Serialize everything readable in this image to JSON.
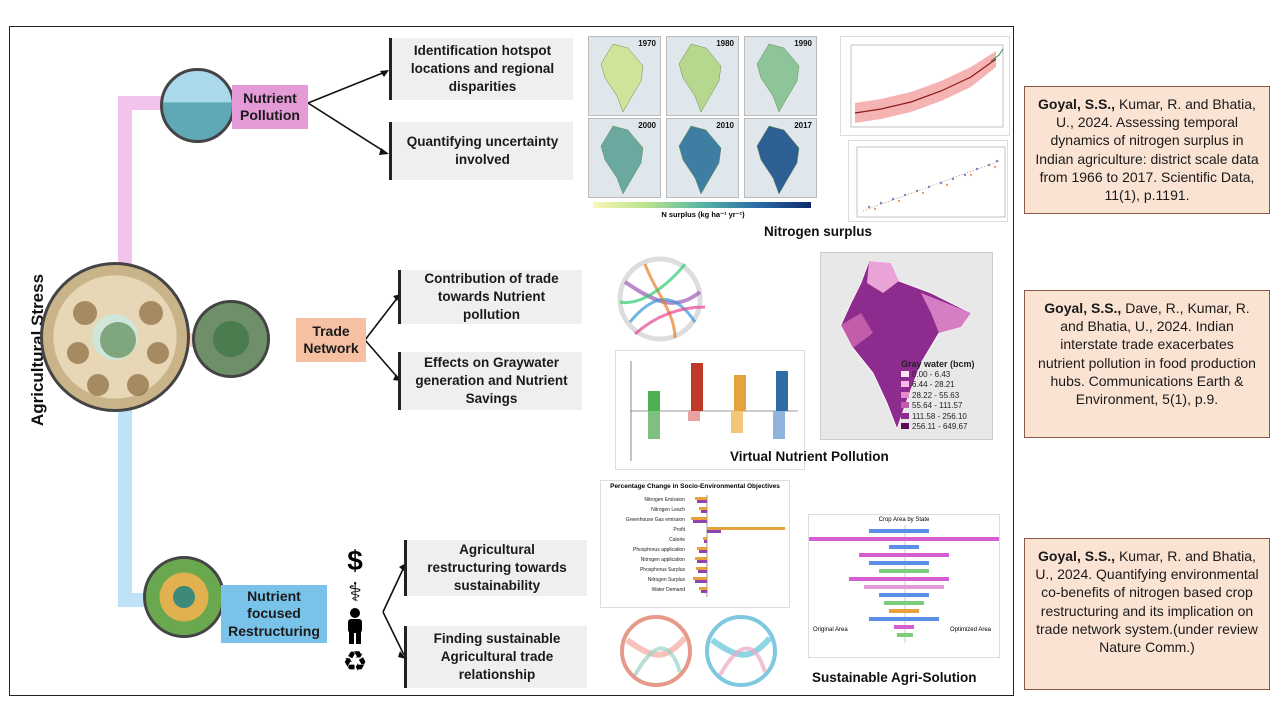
{
  "main_title": "Agricultural Stress",
  "branches": [
    {
      "label": "Nutrient Pollution",
      "color": "#e59ad8"
    },
    {
      "label": "Trade Network",
      "color": "#f6c0a2"
    },
    {
      "label": "Nutrient focused Restructuring",
      "color": "#79c3ea"
    }
  ],
  "objectives": [
    "Identification hotspot locations and regional disparities",
    "Quantifying uncertainty involved",
    "Contribution of trade towards Nutrient pollution",
    "Effects on Graywater generation and Nutrient Savings",
    "Agricultural restructuring towards sustainability",
    "Finding sustainable Agricultural trade relationship"
  ],
  "captions": {
    "nitrogen": "Nitrogen surplus",
    "virtual": "Virtual Nutrient Pollution",
    "sustainable": "Sustainable Agri-Solution"
  },
  "map_years": [
    "1970",
    "1980",
    "1990",
    "2000",
    "2010",
    "2017"
  ],
  "map_colorbar_label": "N surplus (kg ha⁻¹ yr⁻¹)",
  "legend_gray_title": "Gray water (bcm)",
  "legend_gray_items": [
    "0.00 - 6.43",
    "6.44 - 28.21",
    "28.22 - 55.63",
    "55.64 - 111.57",
    "111.58 - 256.10",
    "256.11 - 649.67"
  ],
  "chart_titles": {
    "pct_change": "Percentage Change in Socio-Environmental Objectives",
    "crop_area": "Crop Area by State"
  },
  "pct_change_categories": [
    "Nitrogen Emission",
    "Nitrogen Leach",
    "Greenhouse Gas emission",
    "Profit",
    "Calorie",
    "Phosphorus application",
    "Nitrogen application",
    "Phosphorus Surplus",
    "Nitrogen Surplus",
    "Water Demand"
  ],
  "crop_area_labels": {
    "left": "Original Area",
    "right": "Optimized Area"
  },
  "references": [
    {
      "author": "Goyal, S.S.,",
      "text": " Kumar, R. and Bhatia, U., 2024. Assessing temporal dynamics of nitrogen surplus in Indian agriculture: district scale data from 1966 to 2017. Scientific Data, 11(1), p.1191."
    },
    {
      "author": "Goyal, S.S.,",
      "text": " Dave, R., Kumar, R. and Bhatia, U., 2024. Indian interstate trade exacerbates nutrient pollution in food production hubs. Communications Earth & Environment, 5(1), p.9."
    },
    {
      "author": "Goyal, S.S.,",
      "text": " Kumar, R. and Bhatia, U., 2024. Quantifying environmental co-benefits of nitrogen based crop restructuring and its implication on trade network system.(under review Nature Comm.)"
    }
  ],
  "icons": [
    "dollar-icon",
    "health-caduceus-icon",
    "person-icon",
    "recycle-icon"
  ]
}
